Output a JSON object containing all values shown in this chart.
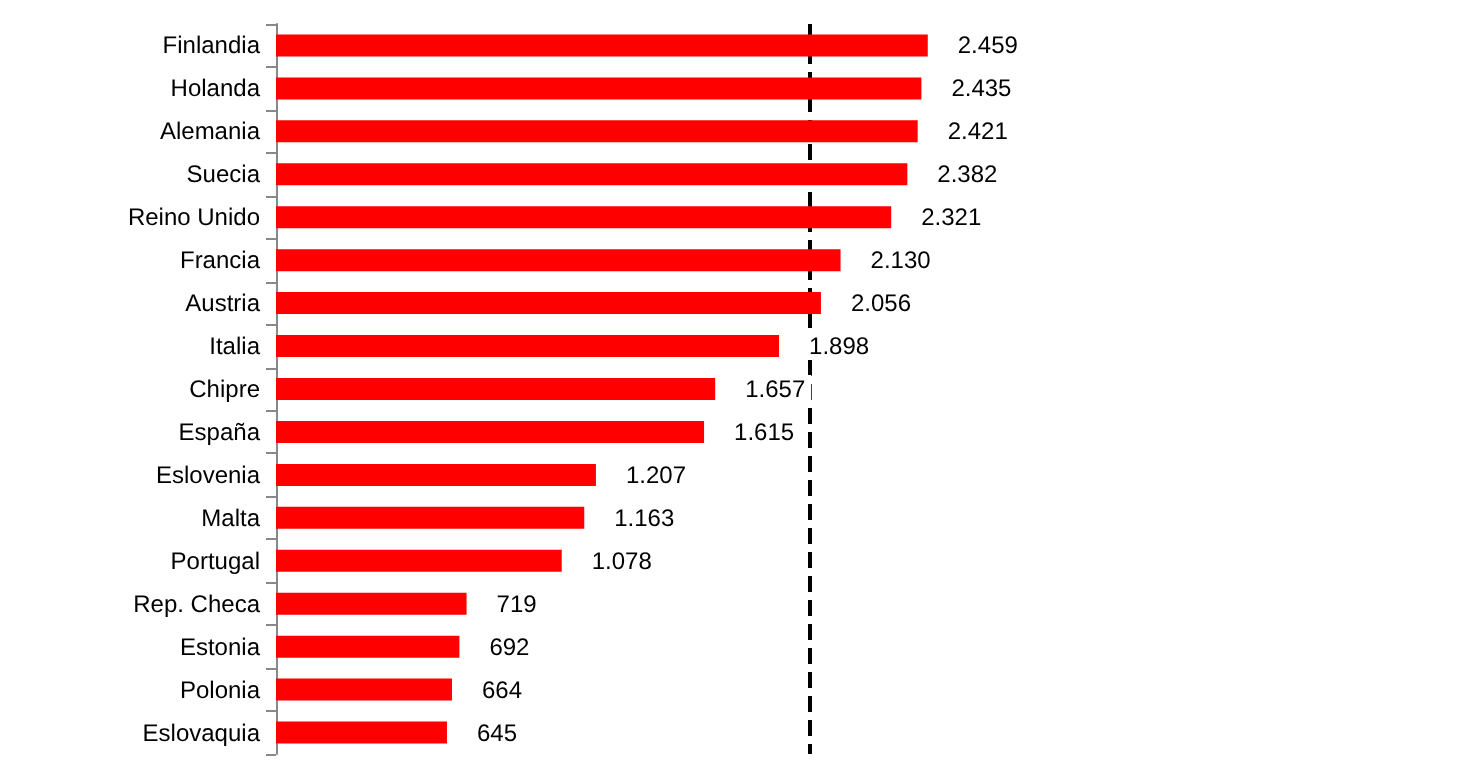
{
  "chart_data": {
    "type": "bar",
    "orientation": "horizontal",
    "categories": [
      "Finlandia",
      "Holanda",
      "Alemania",
      "Suecia",
      "Reino Unido",
      "Francia",
      "Austria",
      "Italia",
      "Chipre",
      "España",
      "Eslovenia",
      "Malta",
      "Portugal",
      "Rep. Checa",
      "Estonia",
      "Polonia",
      "Eslovaquia"
    ],
    "values": [
      2459,
      2435,
      2421,
      2382,
      2321,
      2130,
      2056,
      1898,
      1657,
      1615,
      1207,
      1163,
      1078,
      719,
      692,
      664,
      645
    ],
    "value_labels": [
      "2.459",
      "2.435",
      "2.421",
      "2.382",
      "2.321",
      "2.130",
      "2.056",
      "1.898",
      "1.657",
      "1.615",
      "1.207",
      "1.163",
      "1.078",
      "719",
      "692",
      "664",
      "645"
    ],
    "color": "#ff0000",
    "ref_lines": [
      {
        "axis": "x",
        "value": 2010,
        "color": "#000000",
        "line_style": "dashed"
      }
    ]
  }
}
